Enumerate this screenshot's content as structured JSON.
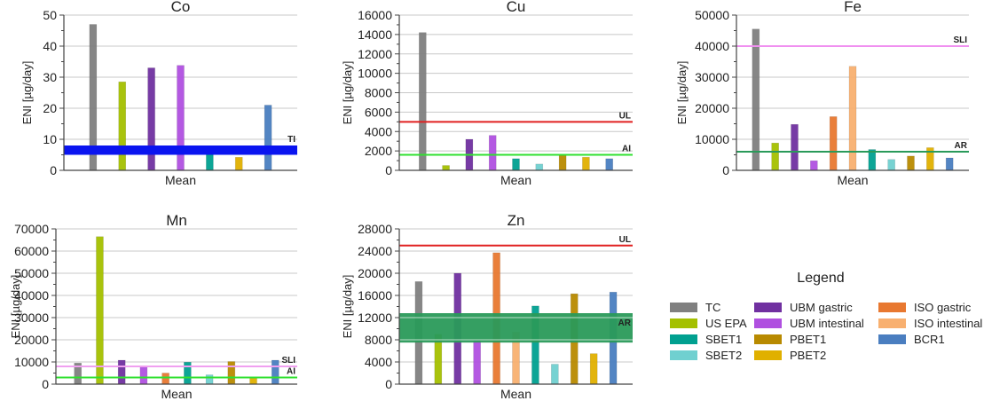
{
  "chart_data": [
    {
      "type": "bar",
      "title": "Co",
      "xlabel": "Mean",
      "ylabel": "ENI [µg/day]",
      "ylim": [
        0,
        50
      ],
      "yticks": [
        0,
        10,
        20,
        30,
        40,
        50
      ],
      "grid": true,
      "categories": [
        "TC",
        "US EPA",
        "UBM gastric",
        "UBM intestinal",
        "SBET1",
        "PBET2",
        "BCR1"
      ],
      "values": [
        47,
        28.5,
        33,
        33.8,
        5.6,
        4.2,
        21
      ],
      "reference": [
        {
          "label": "TI",
          "type": "band",
          "from": 5,
          "to": 8,
          "color": "#0a14f0"
        }
      ]
    },
    {
      "type": "bar",
      "title": "Cu",
      "xlabel": "Mean",
      "ylabel": "ENI [µg/day]",
      "ylim": [
        0,
        16000
      ],
      "yticks": [
        0,
        2000,
        4000,
        6000,
        8000,
        10000,
        12000,
        14000,
        16000
      ],
      "grid": true,
      "categories": [
        "TC",
        "US EPA",
        "UBM gastric",
        "UBM intestinal",
        "SBET1",
        "SBET2",
        "PBET1",
        "PBET2",
        "BCR1"
      ],
      "values": [
        14200,
        500,
        3200,
        3600,
        1200,
        650,
        1600,
        1350,
        1200
      ],
      "reference": [
        {
          "label": "UL",
          "type": "line",
          "value": 5000,
          "color": "#e02020"
        },
        {
          "label": "AI",
          "type": "line",
          "value": 1600,
          "color": "#30e030"
        }
      ]
    },
    {
      "type": "bar",
      "title": "Fe",
      "xlabel": "Mean",
      "ylabel": "ENI [µg/day]",
      "ylim": [
        0,
        50000
      ],
      "yticks": [
        0,
        10000,
        20000,
        30000,
        40000,
        50000
      ],
      "grid": true,
      "categories": [
        "TC",
        "US EPA",
        "UBM gastric",
        "UBM intestinal",
        "ISO gastric",
        "ISO intestinal",
        "SBET1",
        "SBET2",
        "PBET1",
        "PBET2",
        "BCR1"
      ],
      "values": [
        45500,
        8800,
        14800,
        3100,
        17300,
        33500,
        6700,
        3500,
        4600,
        7300,
        4000
      ],
      "reference": [
        {
          "label": "SLI",
          "type": "line",
          "value": 40000,
          "color": "#f090f0"
        },
        {
          "label": "AR",
          "type": "line",
          "value": 6000,
          "color": "#2a9a5a"
        }
      ]
    },
    {
      "type": "bar",
      "title": "Mn",
      "xlabel": "Mean",
      "ylabel": "ENI [µg/day]",
      "ylim": [
        0,
        70000
      ],
      "yticks": [
        0,
        10000,
        20000,
        30000,
        40000,
        50000,
        60000,
        70000
      ],
      "grid": true,
      "categories": [
        "TC",
        "US EPA",
        "UBM gastric",
        "UBM intestinal",
        "ISO gastric",
        "SBET1",
        "SBET2",
        "PBET1",
        "PBET2",
        "BCR1"
      ],
      "values": [
        9500,
        66500,
        10800,
        7800,
        5000,
        9900,
        4200,
        10200,
        3000,
        10800
      ],
      "reference": [
        {
          "label": "SLI",
          "type": "line",
          "value": 8000,
          "color": "#f0a0f0"
        },
        {
          "label": "AI",
          "type": "line",
          "value": 3000,
          "color": "#30e030"
        }
      ]
    },
    {
      "type": "bar",
      "title": "Zn",
      "xlabel": "Mean",
      "ylabel": "ENI [µg/day]",
      "ylim": [
        0,
        28000
      ],
      "yticks": [
        0,
        4000,
        8000,
        12000,
        16000,
        20000,
        24000,
        28000
      ],
      "grid": true,
      "categories": [
        "TC",
        "US EPA",
        "UBM gastric",
        "UBM intestinal",
        "ISO gastric",
        "ISO intestinal",
        "SBET1",
        "SBET2",
        "PBET1",
        "PBET2",
        "BCR1"
      ],
      "values": [
        18500,
        9000,
        20000,
        7900,
        23700,
        9400,
        14100,
        3600,
        16300,
        5500,
        16600
      ],
      "reference": [
        {
          "label": "UL",
          "type": "line",
          "value": 25000,
          "color": "#e02020"
        },
        {
          "label": "AR",
          "type": "band",
          "from": 7500,
          "to": 12800,
          "color": "#2a9a5a"
        }
      ]
    }
  ],
  "legend": {
    "title": "Legend",
    "items": [
      {
        "label": "TC",
        "color": "#808080"
      },
      {
        "label": "US EPA",
        "color": "#a4c000"
      },
      {
        "label": "SBET1",
        "color": "#00a090"
      },
      {
        "label": "SBET2",
        "color": "#70d0d0"
      },
      {
        "label": "UBM gastric",
        "color": "#7030a0"
      },
      {
        "label": "UBM intestinal",
        "color": "#b050e0"
      },
      {
        "label": "PBET1",
        "color": "#b88a00"
      },
      {
        "label": "PBET2",
        "color": "#e0b000"
      },
      {
        "label": "ISO gastric",
        "color": "#e87830"
      },
      {
        "label": "ISO intestinal",
        "color": "#f8b070"
      },
      {
        "label": "BCR1",
        "color": "#4a7ec0"
      }
    ]
  }
}
